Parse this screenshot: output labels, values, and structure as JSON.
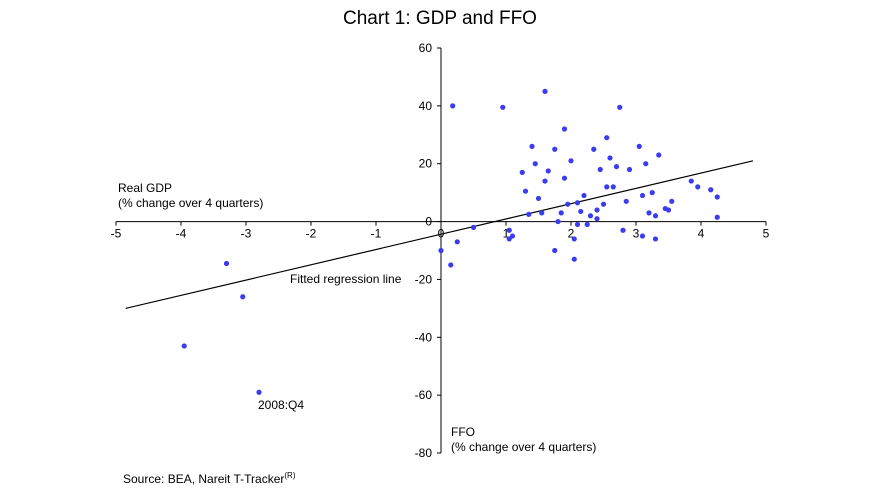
{
  "title": "Chart 1: GDP and FFO",
  "ylabel_line1": "Real GDP",
  "ylabel_line2": "(% change over 4 quarters)",
  "xlabel_line1": "FFO",
  "xlabel_line2": "(% change over 4 quarters)",
  "regression_label": "Fitted regression line",
  "point_annotation": "2008:Q4",
  "source_text": "Source: BEA, Nareit T-Tracker",
  "source_sup": "(R)",
  "colors": {
    "points": "#3b3bf0",
    "line": "#000000",
    "axes": "#000000"
  },
  "chart_data": {
    "type": "scatter",
    "title": "Chart 1: GDP and FFO",
    "xlabel": "FFO (% change over 4 quarters)",
    "ylabel": "Real GDP (% change over 4 quarters)",
    "xlim": [
      -5,
      5
    ],
    "ylim": [
      -80,
      60
    ],
    "x_ticks": [
      -5,
      -4,
      -3,
      -2,
      -1,
      0,
      1,
      2,
      3,
      4,
      5
    ],
    "y_ticks": [
      -80,
      -60,
      -40,
      -20,
      0,
      20,
      40,
      60
    ],
    "grid": false,
    "legend": "none",
    "regression_line": {
      "label": "Fitted regression line",
      "x": [
        -4.85,
        4.8
      ],
      "y": [
        -30,
        21
      ]
    },
    "annotations": [
      {
        "text": "2008:Q4",
        "x": -2.8,
        "y": -59
      }
    ],
    "points": [
      [
        -3.95,
        -43
      ],
      [
        -3.3,
        -14.5
      ],
      [
        -3.05,
        -26
      ],
      [
        -2.8,
        -59
      ],
      [
        0.0,
        -10
      ],
      [
        0.15,
        -15
      ],
      [
        0.25,
        -7
      ],
      [
        0.5,
        -2
      ],
      [
        0.95,
        39.5
      ],
      [
        0.18,
        40
      ],
      [
        1.6,
        45
      ],
      [
        2.75,
        39.5
      ],
      [
        1.05,
        -3
      ],
      [
        1.05,
        -6
      ],
      [
        1.1,
        -5
      ],
      [
        1.25,
        17
      ],
      [
        1.3,
        10.5
      ],
      [
        1.35,
        2.5
      ],
      [
        1.4,
        26
      ],
      [
        1.45,
        20
      ],
      [
        1.5,
        8
      ],
      [
        1.55,
        3
      ],
      [
        1.6,
        14
      ],
      [
        1.65,
        17.5
      ],
      [
        1.75,
        25
      ],
      [
        1.75,
        -10
      ],
      [
        1.8,
        0
      ],
      [
        1.85,
        3
      ],
      [
        1.9,
        15
      ],
      [
        1.9,
        32
      ],
      [
        1.95,
        6
      ],
      [
        2.0,
        21
      ],
      [
        2.05,
        -13
      ],
      [
        2.05,
        -6
      ],
      [
        2.1,
        6.5
      ],
      [
        2.1,
        -1
      ],
      [
        2.15,
        3.5
      ],
      [
        2.2,
        9
      ],
      [
        2.25,
        -1
      ],
      [
        2.3,
        2
      ],
      [
        2.35,
        25
      ],
      [
        2.4,
        4
      ],
      [
        2.4,
        1
      ],
      [
        2.45,
        18
      ],
      [
        2.5,
        6
      ],
      [
        2.55,
        12
      ],
      [
        2.55,
        29
      ],
      [
        2.6,
        22
      ],
      [
        2.65,
        12
      ],
      [
        2.7,
        19
      ],
      [
        2.8,
        -3
      ],
      [
        2.85,
        7
      ],
      [
        2.9,
        18
      ],
      [
        3.05,
        26
      ],
      [
        3.1,
        9
      ],
      [
        3.1,
        -5
      ],
      [
        3.15,
        20
      ],
      [
        3.2,
        3
      ],
      [
        3.25,
        10
      ],
      [
        3.3,
        -6
      ],
      [
        3.3,
        2
      ],
      [
        3.35,
        23
      ],
      [
        3.45,
        4.5
      ],
      [
        3.55,
        7
      ],
      [
        3.5,
        4
      ],
      [
        3.85,
        14
      ],
      [
        3.95,
        12
      ],
      [
        4.15,
        11
      ],
      [
        4.25,
        8.5
      ],
      [
        4.25,
        1.5
      ]
    ]
  }
}
